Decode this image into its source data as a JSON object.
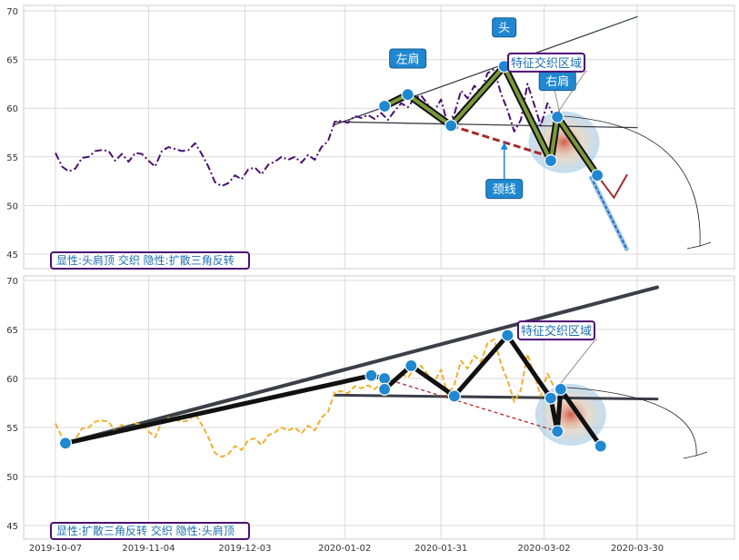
{
  "chart_data": [
    {
      "type": "line",
      "panel": "top",
      "ylim": [
        44,
        70.5
      ],
      "yticks": [
        45,
        50,
        55,
        60,
        65,
        70
      ],
      "grid": true,
      "caption": "显性:头肩顶 交织 隐性:扩散三角反转",
      "series": [
        {
          "color": "#4b0f73",
          "style": "dashdot",
          "points": [
            [
              "2019-10-07",
              55.4
            ],
            [
              "2019-10-09",
              54.0
            ],
            [
              "2019-10-11",
              53.5
            ],
            [
              "2019-10-13",
              53.8
            ],
            [
              "2019-10-15",
              54.9
            ],
            [
              "2019-10-17",
              55.0
            ],
            [
              "2019-10-19",
              55.6
            ],
            [
              "2019-10-21",
              55.7
            ],
            [
              "2019-10-23",
              55.6
            ],
            [
              "2019-10-25",
              54.6
            ],
            [
              "2019-10-27",
              55.3
            ],
            [
              "2019-10-29",
              54.5
            ],
            [
              "2019-10-31",
              55.4
            ],
            [
              "2019-11-02",
              55.3
            ],
            [
              "2019-11-04",
              54.6
            ],
            [
              "2019-11-06",
              54.0
            ],
            [
              "2019-11-08",
              55.6
            ],
            [
              "2019-11-10",
              56.0
            ],
            [
              "2019-11-12",
              55.8
            ],
            [
              "2019-11-14",
              55.6
            ],
            [
              "2019-11-16",
              55.7
            ],
            [
              "2019-11-18",
              56.4
            ],
            [
              "2019-11-20",
              55.3
            ],
            [
              "2019-11-22",
              54.0
            ],
            [
              "2019-11-24",
              52.4
            ],
            [
              "2019-11-26",
              52.0
            ],
            [
              "2019-11-28",
              52.3
            ],
            [
              "2019-11-30",
              53.1
            ],
            [
              "2019-12-02",
              52.7
            ],
            [
              "2019-12-04",
              53.7
            ],
            [
              "2019-12-06",
              53.9
            ],
            [
              "2019-12-08",
              53.2
            ],
            [
              "2019-12-10",
              54.2
            ],
            [
              "2019-12-12",
              54.5
            ],
            [
              "2019-12-14",
              55.0
            ],
            [
              "2019-12-16",
              54.7
            ],
            [
              "2019-12-18",
              55.0
            ],
            [
              "2019-12-20",
              54.4
            ],
            [
              "2019-12-22",
              55.2
            ],
            [
              "2019-12-24",
              54.7
            ],
            [
              "2019-12-26",
              56.0
            ],
            [
              "2019-12-28",
              56.6
            ],
            [
              "2019-12-30",
              58.6
            ],
            [
              "2020-01-01",
              58.7
            ],
            [
              "2020-01-03",
              58.5
            ],
            [
              "2020-01-05",
              59.2
            ],
            [
              "2020-01-07",
              59.0
            ],
            [
              "2020-01-09",
              59.3
            ],
            [
              "2020-01-11",
              58.9
            ],
            [
              "2020-01-13",
              59.5
            ],
            [
              "2020-01-15",
              58.8
            ],
            [
              "2020-01-17",
              59.7
            ],
            [
              "2020-01-19",
              60.5
            ],
            [
              "2020-01-21",
              60.1
            ],
            [
              "2020-01-23",
              61.0
            ],
            [
              "2020-01-25",
              61.3
            ],
            [
              "2020-01-27",
              60.4
            ],
            [
              "2020-01-29",
              59.7
            ],
            [
              "2020-01-31",
              60.9
            ],
            [
              "2020-02-02",
              58.3
            ],
            [
              "2020-02-04",
              59.4
            ],
            [
              "2020-02-06",
              61.8
            ],
            [
              "2020-02-08",
              61.0
            ],
            [
              "2020-02-10",
              62.3
            ],
            [
              "2020-02-12",
              61.7
            ],
            [
              "2020-02-14",
              63.6
            ],
            [
              "2020-02-16",
              64.0
            ],
            [
              "2020-02-18",
              61.5
            ],
            [
              "2020-02-20",
              59.8
            ],
            [
              "2020-02-22",
              57.6
            ],
            [
              "2020-02-24",
              58.8
            ],
            [
              "2020-02-26",
              62.5
            ],
            [
              "2020-02-28",
              60.4
            ],
            [
              "2020-03-01",
              58.2
            ],
            [
              "2020-03-03",
              60.5
            ],
            [
              "2020-03-05",
              59.1
            ]
          ]
        },
        {
          "color": "#1f4fa0",
          "style": "dashed",
          "points": [
            [
              "2020-03-16",
              53.0
            ],
            [
              "2020-03-27",
              45.4
            ]
          ]
        }
      ],
      "pattern": {
        "points": [
          [
            "2020-01-14",
            60.2
          ],
          [
            "2020-01-21",
            61.4
          ],
          [
            "2020-02-03",
            58.2
          ],
          [
            "2020-02-19",
            64.3
          ],
          [
            "2020-03-04",
            54.6
          ],
          [
            "2020-03-06",
            59.1
          ],
          [
            "2020-03-18",
            53.1
          ]
        ],
        "neckline": [
          [
            "2020-02-03",
            58.2
          ],
          [
            "2020-03-04",
            55.0
          ]
        ],
        "trendline_upper": [
          [
            "2019-12-30",
            58.3
          ],
          [
            "2020-03-30",
            69.4
          ]
        ],
        "trendline_lower": [
          [
            "2019-12-30",
            58.6
          ],
          [
            "2020-03-30",
            58.0
          ]
        ]
      },
      "annotations": [
        {
          "text": "头",
          "x": "2020-02-19",
          "y": 68.3
        },
        {
          "text": "左肩",
          "x": "2020-01-21",
          "y": 65.1
        },
        {
          "text": "右肩",
          "x": "2020-03-06",
          "y": 62.8
        },
        {
          "text": "颈线",
          "x": "2020-02-19",
          "y": 51.7
        },
        {
          "text": "特征交织区域",
          "x": "2020-02-21",
          "y": 64.7
        }
      ]
    },
    {
      "type": "line",
      "panel": "bottom",
      "ylim": [
        43.5,
        70.5
      ],
      "yticks": [
        45,
        50,
        55,
        60,
        65,
        70
      ],
      "grid": true,
      "caption": "显性:扩散三角反转 交织 隐性:头肩顶",
      "xticks": [
        "2019-10-07",
        "2019-11-04",
        "2019-12-03",
        "2020-01-02",
        "2020-01-31",
        "2020-03-02",
        "2020-03-30"
      ],
      "series": [
        {
          "color": "#f0b030",
          "style": "dashed",
          "points": [
            [
              "2019-10-07",
              55.4
            ],
            [
              "2019-10-09",
              54.0
            ],
            [
              "2019-10-11",
              53.5
            ],
            [
              "2019-10-13",
              53.8
            ],
            [
              "2019-10-15",
              54.9
            ],
            [
              "2019-10-17",
              55.0
            ],
            [
              "2019-10-19",
              55.6
            ],
            [
              "2019-10-21",
              55.7
            ],
            [
              "2019-10-23",
              55.6
            ],
            [
              "2019-10-25",
              54.6
            ],
            [
              "2019-10-27",
              55.3
            ],
            [
              "2019-10-29",
              54.5
            ],
            [
              "2019-10-31",
              55.4
            ],
            [
              "2019-11-02",
              55.3
            ],
            [
              "2019-11-04",
              54.6
            ],
            [
              "2019-11-06",
              54.0
            ],
            [
              "2019-11-08",
              55.6
            ],
            [
              "2019-11-10",
              56.0
            ],
            [
              "2019-11-12",
              55.8
            ],
            [
              "2019-11-14",
              55.6
            ],
            [
              "2019-11-16",
              55.7
            ],
            [
              "2019-11-18",
              56.4
            ],
            [
              "2019-11-20",
              55.3
            ],
            [
              "2019-11-22",
              54.0
            ],
            [
              "2019-11-24",
              52.4
            ],
            [
              "2019-11-26",
              52.0
            ],
            [
              "2019-11-28",
              52.3
            ],
            [
              "2019-11-30",
              53.1
            ],
            [
              "2019-12-02",
              52.7
            ],
            [
              "2019-12-04",
              53.7
            ],
            [
              "2019-12-06",
              53.9
            ],
            [
              "2019-12-08",
              53.2
            ],
            [
              "2019-12-10",
              54.2
            ],
            [
              "2019-12-12",
              54.5
            ],
            [
              "2019-12-14",
              55.0
            ],
            [
              "2019-12-16",
              54.7
            ],
            [
              "2019-12-18",
              55.0
            ],
            [
              "2019-12-20",
              54.4
            ],
            [
              "2019-12-22",
              55.2
            ],
            [
              "2019-12-24",
              54.7
            ],
            [
              "2019-12-26",
              56.0
            ],
            [
              "2019-12-28",
              56.6
            ],
            [
              "2019-12-30",
              58.6
            ],
            [
              "2020-01-01",
              58.7
            ],
            [
              "2020-01-03",
              58.5
            ],
            [
              "2020-01-05",
              59.2
            ],
            [
              "2020-01-07",
              59.0
            ],
            [
              "2020-01-09",
              59.3
            ],
            [
              "2020-01-11",
              58.9
            ],
            [
              "2020-01-13",
              59.5
            ],
            [
              "2020-01-15",
              58.8
            ],
            [
              "2020-01-17",
              59.7
            ],
            [
              "2020-01-19",
              60.5
            ],
            [
              "2020-01-21",
              60.1
            ],
            [
              "2020-01-23",
              61.0
            ],
            [
              "2020-01-25",
              61.3
            ],
            [
              "2020-01-27",
              60.4
            ],
            [
              "2020-01-29",
              59.7
            ],
            [
              "2020-01-31",
              60.9
            ],
            [
              "2020-02-02",
              58.3
            ],
            [
              "2020-02-04",
              59.4
            ],
            [
              "2020-02-06",
              61.8
            ],
            [
              "2020-02-08",
              61.0
            ],
            [
              "2020-02-10",
              62.3
            ],
            [
              "2020-02-12",
              61.7
            ],
            [
              "2020-02-14",
              63.6
            ],
            [
              "2020-02-16",
              64.0
            ],
            [
              "2020-02-18",
              61.5
            ],
            [
              "2020-02-20",
              59.8
            ],
            [
              "2020-02-22",
              57.6
            ],
            [
              "2020-02-24",
              58.8
            ],
            [
              "2020-02-26",
              62.5
            ],
            [
              "2020-02-28",
              60.4
            ],
            [
              "2020-03-01",
              58.2
            ],
            [
              "2020-03-03",
              60.5
            ],
            [
              "2020-03-05",
              59.1
            ]
          ]
        }
      ],
      "pattern": {
        "points": [
          [
            "2019-10-10",
            53.4
          ],
          [
            "2020-01-10",
            60.3
          ],
          [
            "2020-01-14",
            60.0
          ],
          [
            "2020-01-14",
            58.9
          ],
          [
            "2020-01-22",
            61.3
          ],
          [
            "2020-02-04",
            58.2
          ],
          [
            "2020-02-20",
            64.4
          ],
          [
            "2020-03-04",
            58.0
          ],
          [
            "2020-03-06",
            54.6
          ],
          [
            "2020-03-07",
            58.9
          ],
          [
            "2020-03-19",
            53.1
          ]
        ],
        "trendline_upper": [
          [
            "2019-10-10",
            53.4
          ],
          [
            "2020-04-05",
            69.3
          ]
        ],
        "trendline_lower": [
          [
            "2019-12-30",
            58.3
          ],
          [
            "2020-04-05",
            57.9
          ]
        ],
        "neckline": [
          [
            "2020-01-14",
            60.0
          ],
          [
            "2020-03-06",
            54.6
          ]
        ]
      },
      "annotations": [
        {
          "text": "特征交织区域",
          "x": "2020-02-24",
          "y": 64.9
        }
      ]
    }
  ]
}
